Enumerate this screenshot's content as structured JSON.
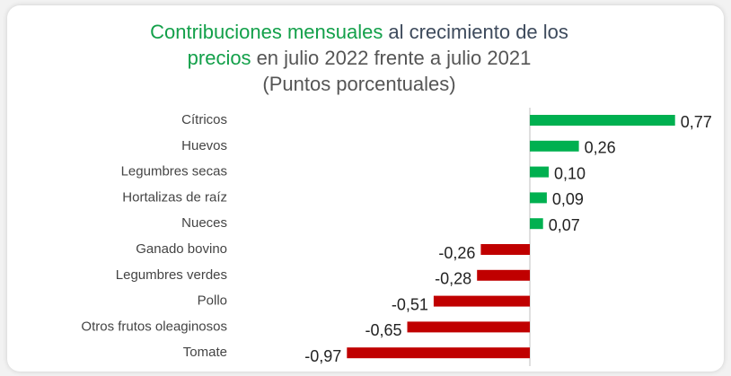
{
  "chart_data": {
    "type": "barh",
    "title_lines": [
      [
        {
          "text": "Contribuciones mensuales",
          "color": "#13a04a"
        },
        {
          "text": "al crecimiento de los",
          "color": "#3d4a5c"
        }
      ],
      [
        {
          "text": "precios",
          "color": "#13a04a"
        },
        {
          "text": "en julio 2022 frente a julio 2021",
          "color": "#555555"
        }
      ],
      [
        {
          "text": "(Puntos porcentuales)",
          "color": "#555555"
        }
      ]
    ],
    "categories": [
      "Cítricos",
      "Huevos",
      "Legumbres secas",
      "Hortalizas de raíz",
      "Nueces",
      "Ganado bovino",
      "Legumbres verdes",
      "Pollo",
      "Otros frutos oleaginosos",
      "Tomate"
    ],
    "values": [
      0.77,
      0.26,
      0.1,
      0.09,
      0.07,
      -0.26,
      -0.28,
      -0.51,
      -0.65,
      -0.97
    ],
    "value_labels": [
      "0,77",
      "0,26",
      "0,10",
      "0,09",
      "0,07",
      "-0,26",
      "-0,28",
      "-0,51",
      "-0,65",
      "-0,97"
    ],
    "positive_color": "#00b050",
    "negative_color": "#c00000"
  }
}
